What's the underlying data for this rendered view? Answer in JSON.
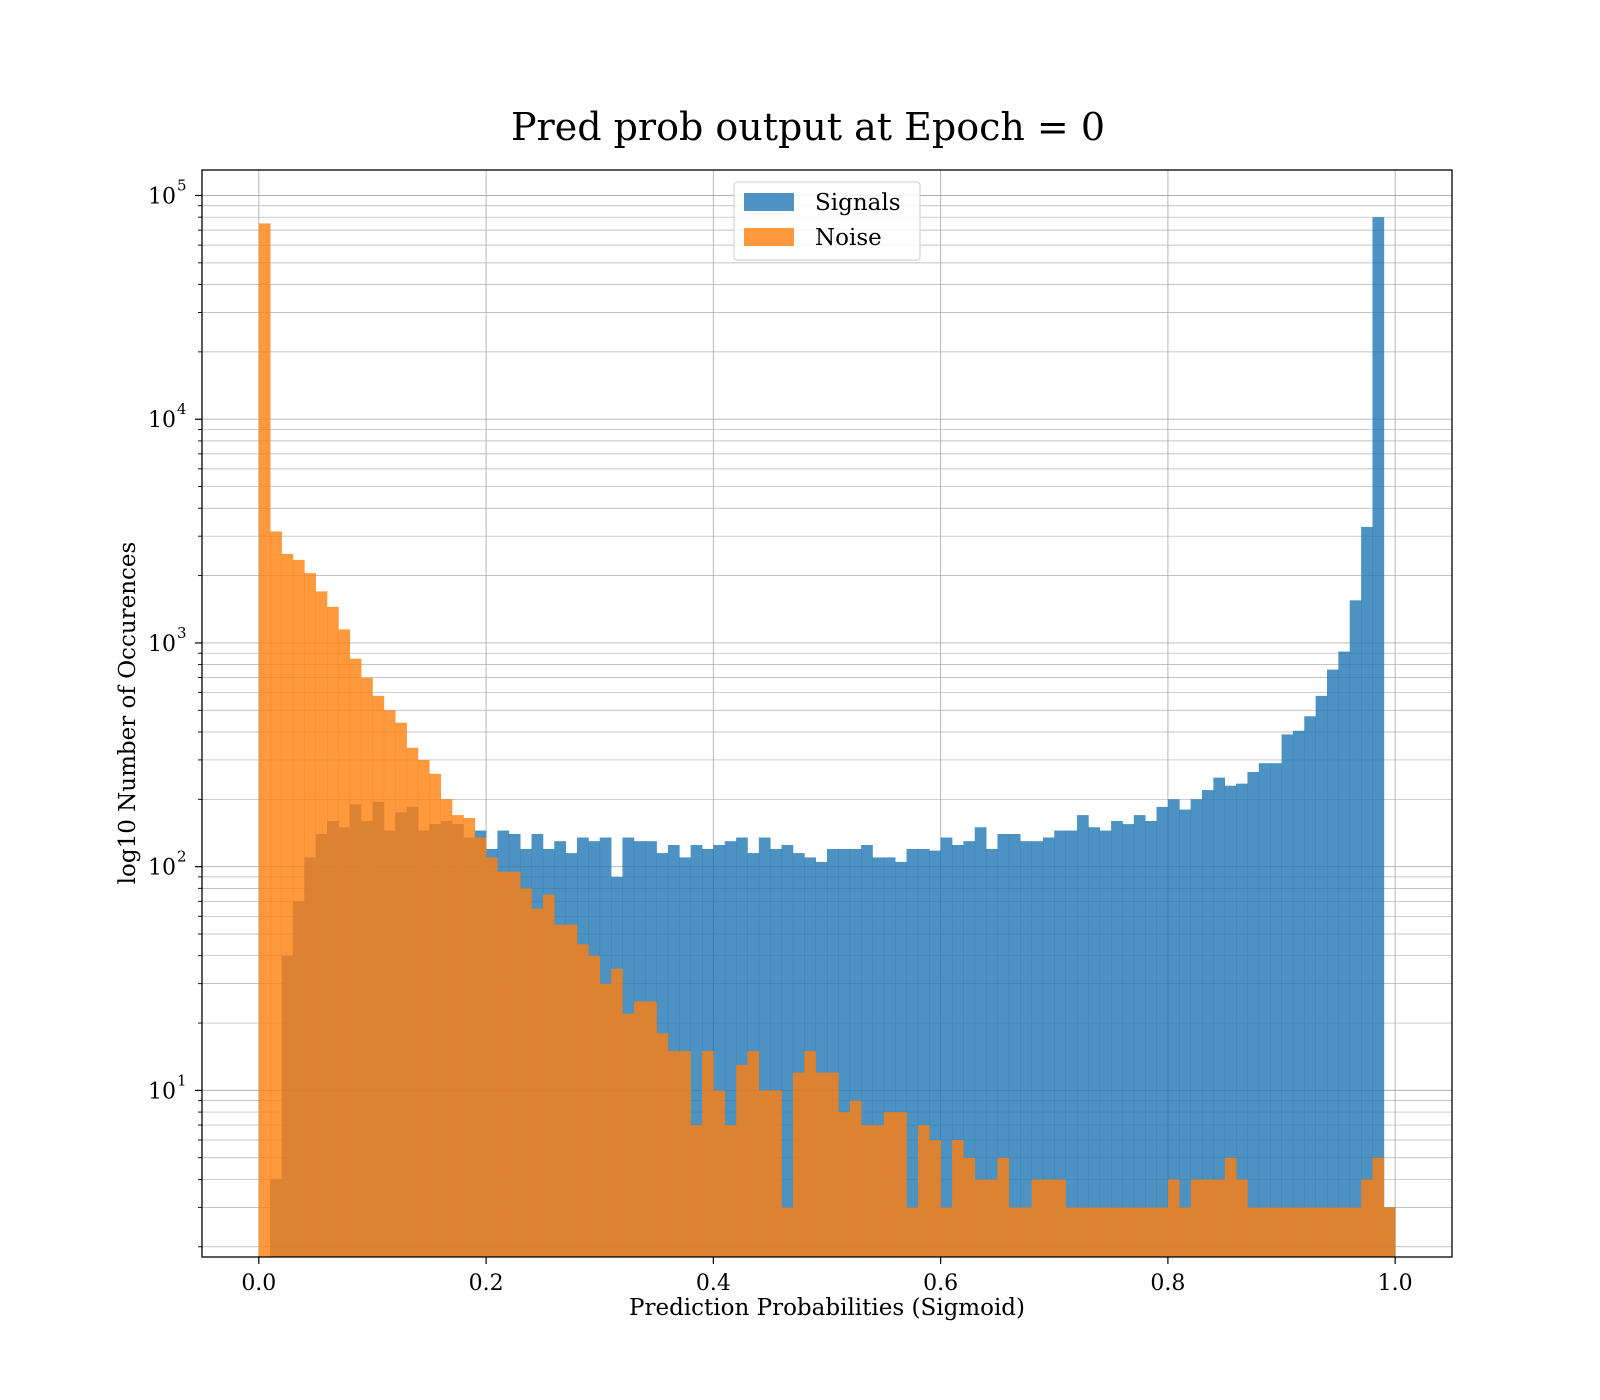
{
  "chart_data": {
    "type": "bar",
    "title": "Pred prob output at Epoch = 0",
    "xlabel": "Prediction Probabilities (Sigmoid)",
    "ylabel": "log10 Number of Occurences",
    "yscale": "log",
    "xlim": [
      -0.05,
      1.05
    ],
    "ylim": [
      1.8,
      130000
    ],
    "grid": true,
    "legend_position": "upper-center",
    "x_ticks": [
      {
        "value": 0.0,
        "label": "0.0"
      },
      {
        "value": 0.2,
        "label": "0.2"
      },
      {
        "value": 0.4,
        "label": "0.4"
      },
      {
        "value": 0.6,
        "label": "0.6"
      },
      {
        "value": 0.8,
        "label": "0.8"
      },
      {
        "value": 1.0,
        "label": "1.0"
      }
    ],
    "y_ticks": [
      {
        "value": 10,
        "base": "10",
        "exp": "1"
      },
      {
        "value": 100,
        "base": "10",
        "exp": "2"
      },
      {
        "value": 1000,
        "base": "10",
        "exp": "3"
      },
      {
        "value": 10000,
        "base": "10",
        "exp": "4"
      },
      {
        "value": 100000,
        "base": "10",
        "exp": "5"
      }
    ],
    "bin_start": 0.0,
    "bin_width": 0.01,
    "series": [
      {
        "name": "Signals",
        "color": "#1f77b4",
        "alpha": 0.8,
        "values": [
          0,
          4,
          40,
          70,
          110,
          140,
          160,
          150,
          190,
          160,
          195,
          145,
          175,
          185,
          145,
          155,
          160,
          155,
          135,
          145,
          120,
          145,
          140,
          120,
          140,
          120,
          130,
          115,
          135,
          130,
          135,
          90,
          135,
          130,
          130,
          115,
          125,
          110,
          125,
          120,
          125,
          130,
          135,
          115,
          135,
          120,
          125,
          115,
          110,
          105,
          120,
          120,
          120,
          125,
          110,
          110,
          105,
          120,
          120,
          118,
          135,
          125,
          130,
          150,
          120,
          140,
          140,
          130,
          130,
          135,
          145,
          145,
          170,
          150,
          145,
          160,
          155,
          170,
          160,
          185,
          200,
          180,
          200,
          220,
          250,
          230,
          235,
          265,
          290,
          290,
          390,
          405,
          470,
          580,
          760,
          915,
          1550,
          3300,
          80000,
          3
        ]
      },
      {
        "name": "Noise",
        "color": "#ff7f0e",
        "alpha": 0.8,
        "values": [
          75000,
          3150,
          2500,
          2350,
          2050,
          1700,
          1450,
          1150,
          850,
          700,
          580,
          500,
          440,
          340,
          300,
          260,
          200,
          170,
          165,
          135,
          110,
          95,
          95,
          80,
          65,
          75,
          55,
          55,
          45,
          40,
          30,
          35,
          22,
          25,
          25,
          18,
          15,
          15,
          7,
          15,
          10,
          7,
          13,
          15,
          10,
          10,
          3,
          12,
          15,
          12,
          12,
          8,
          9,
          7,
          7,
          8,
          8,
          3,
          7,
          6,
          3,
          6,
          5,
          4,
          4,
          5,
          3,
          3,
          4,
          4,
          4,
          3,
          3,
          3,
          3,
          3,
          3,
          3,
          3,
          3,
          4,
          3,
          4,
          4,
          4,
          5,
          4,
          3,
          3,
          3,
          3,
          3,
          3,
          3,
          3,
          3,
          3,
          4,
          5,
          3
        ]
      }
    ]
  }
}
